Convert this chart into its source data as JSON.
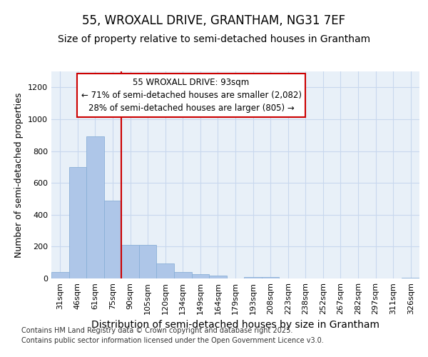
{
  "title_line1": "55, WROXALL DRIVE, GRANTHAM, NG31 7EF",
  "title_line2": "Size of property relative to semi-detached houses in Grantham",
  "xlabel": "Distribution of semi-detached houses by size in Grantham",
  "ylabel": "Number of semi-detached properties",
  "categories": [
    "31sqm",
    "46sqm",
    "61sqm",
    "75sqm",
    "90sqm",
    "105sqm",
    "120sqm",
    "134sqm",
    "149sqm",
    "164sqm",
    "179sqm",
    "193sqm",
    "208sqm",
    "223sqm",
    "238sqm",
    "252sqm",
    "267sqm",
    "282sqm",
    "297sqm",
    "311sqm",
    "326sqm"
  ],
  "values": [
    40,
    700,
    890,
    490,
    210,
    210,
    95,
    40,
    25,
    20,
    0,
    10,
    10,
    0,
    0,
    0,
    0,
    0,
    0,
    0,
    5
  ],
  "bar_color": "#aec6e8",
  "bar_edge_color": "#8ab0d8",
  "vline_index": 4,
  "annotation_line1": "55 WROXALL DRIVE: 93sqm",
  "annotation_line2": "← 71% of semi-detached houses are smaller (2,082)",
  "annotation_line3": "28% of semi-detached houses are larger (805) →",
  "annotation_box_color": "#ffffff",
  "annotation_box_edge_color": "#cc0000",
  "vline_color": "#cc0000",
  "ylim": [
    0,
    1300
  ],
  "yticks": [
    0,
    200,
    400,
    600,
    800,
    1000,
    1200
  ],
  "grid_color": "#c8d8ee",
  "background_color": "#ffffff",
  "plot_bg_color": "#e8f0f8",
  "footer_line1": "Contains HM Land Registry data © Crown copyright and database right 2025.",
  "footer_line2": "Contains public sector information licensed under the Open Government Licence v3.0.",
  "title_fontsize": 12,
  "subtitle_fontsize": 10,
  "ylabel_fontsize": 9,
  "xlabel_fontsize": 10,
  "tick_fontsize": 8,
  "footer_fontsize": 7,
  "annotation_fontsize": 8.5
}
